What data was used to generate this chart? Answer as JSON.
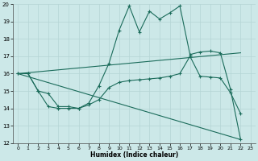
{
  "xlabel": "Humidex (Indice chaleur)",
  "bg_color": "#cce8e8",
  "grid_color": "#b5d5d5",
  "line_color": "#1a6b5a",
  "xlim": [
    -0.5,
    23.5
  ],
  "ylim": [
    12,
    20
  ],
  "xticks": [
    0,
    1,
    2,
    3,
    4,
    5,
    6,
    7,
    8,
    9,
    10,
    11,
    12,
    13,
    14,
    15,
    16,
    17,
    18,
    19,
    20,
    21,
    22,
    23
  ],
  "yticks": [
    12,
    13,
    14,
    15,
    16,
    17,
    18,
    19,
    20
  ],
  "line_straight_up": {
    "x": [
      0,
      22
    ],
    "y": [
      16.0,
      17.2
    ]
  },
  "line_straight_down": {
    "x": [
      0,
      22
    ],
    "y": [
      16.0,
      12.2
    ]
  },
  "line_lower": {
    "x": [
      0,
      1,
      2,
      3,
      4,
      5,
      6,
      7,
      8,
      9,
      10,
      11,
      12,
      13,
      14,
      15,
      16,
      17,
      18,
      19,
      20,
      21,
      22
    ],
    "y": [
      16.0,
      16.0,
      15.0,
      14.1,
      14.0,
      14.0,
      14.0,
      14.2,
      14.5,
      15.2,
      15.5,
      15.6,
      15.65,
      15.7,
      15.75,
      15.85,
      16.0,
      17.0,
      15.85,
      15.8,
      15.75,
      14.9,
      13.7
    ]
  },
  "line_upper": {
    "x": [
      0,
      1,
      2,
      3,
      4,
      5,
      6,
      7,
      8,
      9,
      10,
      11,
      12,
      13,
      14,
      15,
      16,
      17,
      18,
      19,
      20,
      21,
      22
    ],
    "y": [
      16.0,
      16.0,
      15.0,
      14.85,
      14.1,
      14.1,
      14.0,
      14.3,
      15.3,
      16.6,
      18.5,
      19.9,
      18.4,
      19.6,
      19.15,
      19.5,
      19.9,
      17.1,
      17.25,
      17.3,
      17.2,
      15.1,
      12.2
    ]
  }
}
